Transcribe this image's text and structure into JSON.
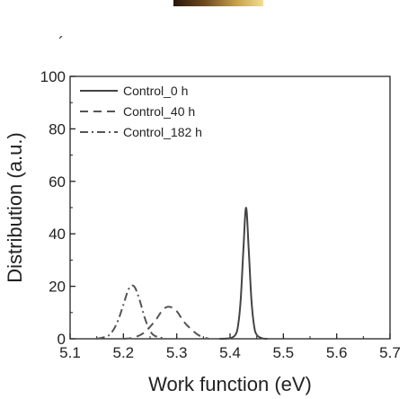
{
  "decor": {
    "stray_mark": "´"
  },
  "chart_data": {
    "type": "line",
    "title": "",
    "xlabel": "Work function (eV)",
    "ylabel": "Distribution (a.u.)",
    "xlim": [
      5.1,
      5.7
    ],
    "ylim": [
      0,
      100
    ],
    "xticks": [
      "5.1",
      "5.2",
      "5.3",
      "5.4",
      "5.5",
      "5.6",
      "5.7"
    ],
    "yticks": [
      "0",
      "20",
      "40",
      "60",
      "80",
      "100"
    ],
    "grid": false,
    "legend_position": "top-right",
    "series": [
      {
        "name": "Control_0 h",
        "style": "solid",
        "color": "#444444",
        "x": [
          5.38,
          5.4,
          5.41,
          5.415,
          5.42,
          5.425,
          5.43,
          5.435,
          5.44,
          5.445,
          5.45,
          5.46,
          5.47
        ],
        "y": [
          0,
          0.2,
          1.5,
          5,
          15,
          34,
          50,
          34,
          15,
          5,
          1.5,
          0.2,
          0
        ]
      },
      {
        "name": "Control_40 h",
        "style": "dashed",
        "color": "#555555",
        "x": [
          5.2,
          5.22,
          5.24,
          5.26,
          5.27,
          5.28,
          5.29,
          5.3,
          5.31,
          5.32,
          5.34,
          5.36
        ],
        "y": [
          0,
          0.5,
          2.5,
          7,
          10,
          12,
          12,
          10.5,
          7.5,
          5,
          1.5,
          0
        ]
      },
      {
        "name": "Control_182 h",
        "style": "dashdot",
        "color": "#555555",
        "x": [
          5.15,
          5.17,
          5.18,
          5.19,
          5.2,
          5.21,
          5.22,
          5.23,
          5.24,
          5.25,
          5.26,
          5.28
        ],
        "y": [
          0,
          1,
          3,
          7,
          13,
          19,
          20,
          15,
          8,
          3,
          1,
          0
        ]
      }
    ]
  }
}
